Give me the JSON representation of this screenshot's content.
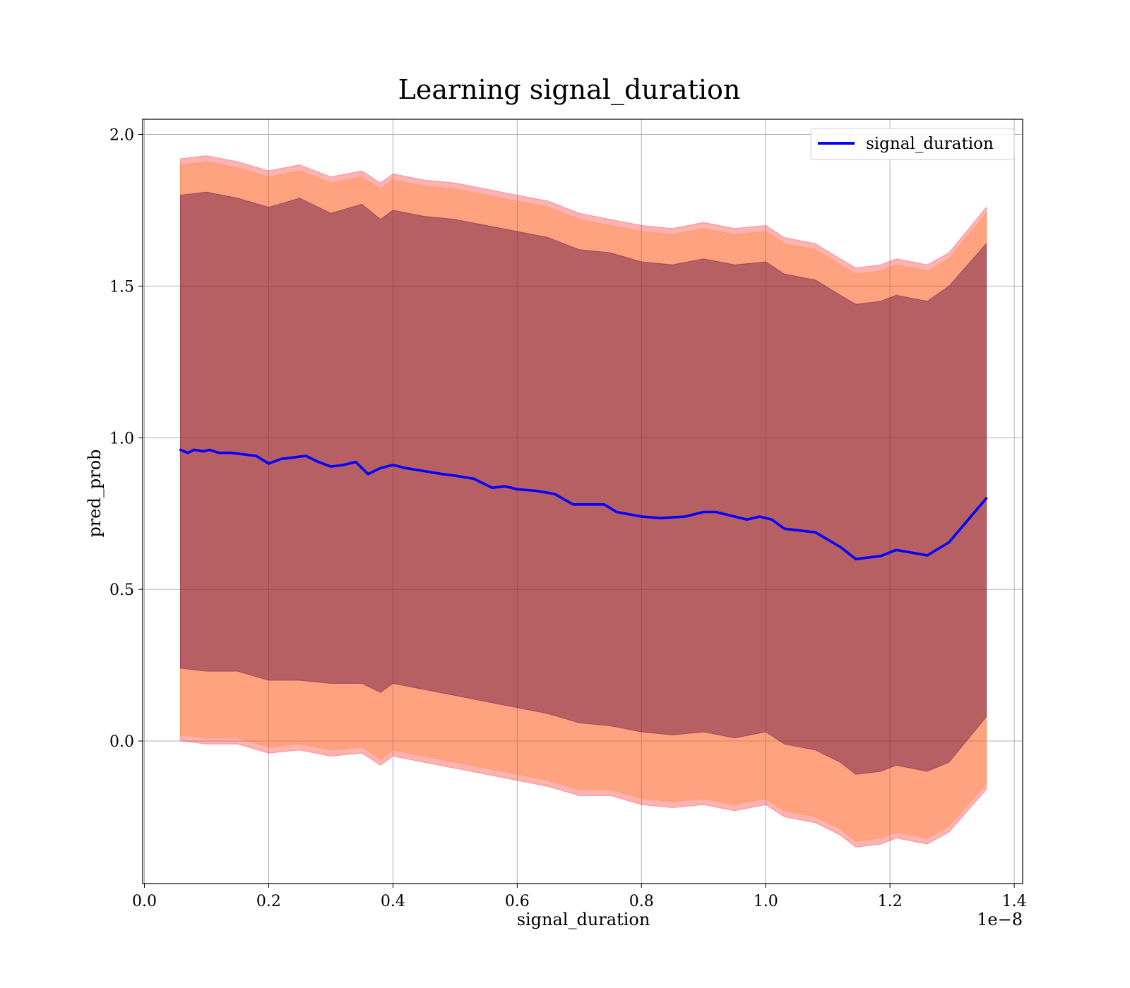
{
  "chart_data": {
    "type": "line",
    "title": "Learning signal_duration",
    "xlabel": "signal_duration",
    "ylabel": "pred_prob",
    "x_offset_label": "1e−8",
    "xlim": [
      -0.0028,
      1.4135
    ],
    "ylim": [
      -0.47,
      2.05
    ],
    "xticks": [
      0.0,
      0.2,
      0.4,
      0.6,
      0.8,
      1.0,
      1.2,
      1.4
    ],
    "xtick_labels": [
      "0.0",
      "0.2",
      "0.4",
      "0.6",
      "0.8",
      "1.0",
      "1.2",
      "1.4"
    ],
    "yticks": [
      0.0,
      0.5,
      1.0,
      1.5,
      2.0
    ],
    "ytick_labels": [
      "0.0",
      "0.5",
      "1.0",
      "1.5",
      "2.0"
    ],
    "grid": true,
    "legend": {
      "position": "top-right",
      "entries": [
        "signal_duration"
      ]
    },
    "series": [
      {
        "name": "signal_duration",
        "color": "#0000ff",
        "x": [
          0.058,
          0.07,
          0.08,
          0.095,
          0.105,
          0.12,
          0.14,
          0.16,
          0.18,
          0.2,
          0.22,
          0.24,
          0.26,
          0.28,
          0.3,
          0.32,
          0.34,
          0.36,
          0.38,
          0.4,
          0.42,
          0.45,
          0.48,
          0.5,
          0.53,
          0.56,
          0.58,
          0.6,
          0.63,
          0.66,
          0.69,
          0.72,
          0.74,
          0.76,
          0.8,
          0.83,
          0.87,
          0.9,
          0.92,
          0.95,
          0.97,
          0.99,
          1.01,
          1.03,
          1.08,
          1.12,
          1.145,
          1.185,
          1.21,
          1.26,
          1.295,
          1.355
        ],
        "y": [
          0.96,
          0.95,
          0.96,
          0.955,
          0.96,
          0.95,
          0.95,
          0.945,
          0.94,
          0.915,
          0.93,
          0.935,
          0.94,
          0.92,
          0.905,
          0.91,
          0.92,
          0.88,
          0.9,
          0.91,
          0.9,
          0.89,
          0.88,
          0.875,
          0.865,
          0.835,
          0.84,
          0.83,
          0.825,
          0.815,
          0.78,
          0.78,
          0.78,
          0.755,
          0.74,
          0.735,
          0.74,
          0.755,
          0.755,
          0.74,
          0.73,
          0.74,
          0.73,
          0.7,
          0.688,
          0.64,
          0.6,
          0.61,
          0.63,
          0.612,
          0.655,
          0.8
        ]
      }
    ],
    "bands": [
      {
        "color": "#ff0000",
        "opacity": 0.3,
        "x": [
          0.058,
          0.1,
          0.15,
          0.2,
          0.25,
          0.3,
          0.35,
          0.38,
          0.4,
          0.45,
          0.5,
          0.55,
          0.6,
          0.65,
          0.7,
          0.75,
          0.8,
          0.85,
          0.9,
          0.95,
          1.0,
          1.03,
          1.08,
          1.12,
          1.145,
          1.185,
          1.21,
          1.26,
          1.295,
          1.355
        ],
        "upper": [
          1.92,
          1.93,
          1.91,
          1.88,
          1.9,
          1.86,
          1.88,
          1.84,
          1.87,
          1.85,
          1.84,
          1.82,
          1.8,
          1.78,
          1.74,
          1.72,
          1.7,
          1.69,
          1.71,
          1.69,
          1.7,
          1.66,
          1.64,
          1.59,
          1.56,
          1.57,
          1.59,
          1.57,
          1.61,
          1.76
        ],
        "lower": [
          0.0,
          -0.01,
          -0.01,
          -0.04,
          -0.03,
          -0.05,
          -0.04,
          -0.08,
          -0.05,
          -0.07,
          -0.09,
          -0.11,
          -0.13,
          -0.15,
          -0.18,
          -0.18,
          -0.21,
          -0.22,
          -0.21,
          -0.23,
          -0.21,
          -0.25,
          -0.27,
          -0.31,
          -0.35,
          -0.34,
          -0.32,
          -0.34,
          -0.3,
          -0.16
        ]
      },
      {
        "color": "#ff7f0e",
        "opacity": 0.3,
        "x": [
          0.058,
          0.1,
          0.15,
          0.2,
          0.25,
          0.3,
          0.35,
          0.38,
          0.4,
          0.45,
          0.5,
          0.55,
          0.6,
          0.65,
          0.7,
          0.75,
          0.8,
          0.85,
          0.9,
          0.95,
          1.0,
          1.03,
          1.08,
          1.12,
          1.145,
          1.185,
          1.21,
          1.26,
          1.295,
          1.355
        ],
        "upper": [
          1.9,
          1.91,
          1.89,
          1.86,
          1.88,
          1.84,
          1.86,
          1.82,
          1.85,
          1.83,
          1.82,
          1.8,
          1.78,
          1.76,
          1.72,
          1.7,
          1.68,
          1.67,
          1.69,
          1.67,
          1.68,
          1.64,
          1.62,
          1.57,
          1.54,
          1.55,
          1.57,
          1.55,
          1.59,
          1.74
        ],
        "lower": [
          0.02,
          0.01,
          0.01,
          -0.02,
          -0.01,
          -0.03,
          -0.02,
          -0.06,
          -0.03,
          -0.05,
          -0.07,
          -0.09,
          -0.11,
          -0.13,
          -0.16,
          -0.16,
          -0.19,
          -0.2,
          -0.19,
          -0.21,
          -0.19,
          -0.23,
          -0.25,
          -0.29,
          -0.33,
          -0.32,
          -0.3,
          -0.32,
          -0.28,
          -0.14
        ]
      },
      {
        "color": "#5f0f40",
        "opacity": 0.45,
        "x": [
          0.058,
          0.1,
          0.15,
          0.2,
          0.25,
          0.3,
          0.35,
          0.38,
          0.4,
          0.45,
          0.5,
          0.55,
          0.6,
          0.65,
          0.7,
          0.75,
          0.8,
          0.85,
          0.9,
          0.95,
          1.0,
          1.03,
          1.08,
          1.12,
          1.145,
          1.185,
          1.21,
          1.26,
          1.295,
          1.355
        ],
        "upper": [
          1.8,
          1.81,
          1.79,
          1.76,
          1.79,
          1.74,
          1.77,
          1.72,
          1.75,
          1.73,
          1.72,
          1.7,
          1.68,
          1.66,
          1.62,
          1.61,
          1.58,
          1.57,
          1.59,
          1.57,
          1.58,
          1.54,
          1.52,
          1.47,
          1.44,
          1.45,
          1.47,
          1.45,
          1.5,
          1.64
        ]
      }
    ]
  }
}
